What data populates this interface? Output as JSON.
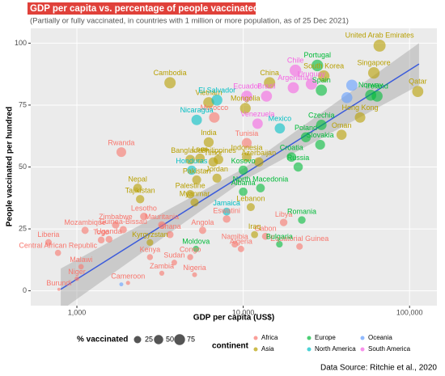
{
  "chart_data": {
    "type": "scatter",
    "title": "GDP per capita vs. percentage of people vaccinated",
    "subtitle": "(Partially or fully vaccinated, in countries with 1 million or more population, as of 25 Dec 2021)",
    "x_label": "GDP per capita (US$)",
    "y_label": "People vaccinated per hundred",
    "caption": "Data Source: Ritchie et al., 2020",
    "xlim": [
      528,
      146000
    ],
    "ylim": [
      -6,
      106
    ],
    "x_log": true,
    "grid": true,
    "xticks": [
      {
        "value": 1000,
        "label": "1,000"
      },
      {
        "value": 10000,
        "label": "10,000"
      },
      {
        "value": 100000,
        "label": "100,000"
      }
    ],
    "yticks": [
      0,
      25,
      50,
      75,
      100
    ],
    "size_legend": {
      "title": "% vaccinated",
      "values": [
        25,
        50,
        75
      ]
    },
    "legend_title": "continent",
    "legend_position": "bottom",
    "trend": {
      "color": "#3b5bdb",
      "x": [
        800,
        10000,
        114000
      ],
      "y": [
        0.6,
        46.9,
        91.6
      ],
      "lower": [
        -8,
        44.5,
        83
      ],
      "upper": [
        9,
        49.3,
        100
      ]
    },
    "series": [
      {
        "name": "Africa",
        "color": "#F8766D",
        "labels": [
          "Morocco",
          "Rwanda",
          "Tunisia",
          "Lesotho",
          "Eswatini",
          "Zimbabwe",
          "Mozambique",
          "Guinea-Bissau",
          "Mauritania",
          "Libya",
          "Angola",
          "Ghana",
          "Togo",
          "Uganda",
          "Gabon",
          "Equatorial Guinea",
          "Algeria",
          "Namibia",
          "Liberia",
          "Central African Republic",
          "Kenya",
          "Congo",
          "Malawi",
          "Sudan",
          "Zambia",
          "Niger",
          "Cameroon",
          "Nigeria",
          "Burundi"
        ],
        "x": [
          6700,
          1850,
          10500,
          2530,
          7950,
          1710,
          1120,
          1900,
          3240,
          17500,
          5700,
          3630,
          1400,
          1560,
          13600,
          21800,
          9700,
          8900,
          675,
          770,
          2750,
          4800,
          1060,
          3850,
          3240,
          1000,
          2030,
          5100,
          780
        ],
        "values": [
          70,
          56,
          59.7,
          30,
          29,
          26.6,
          24.4,
          24.7,
          26.6,
          27.6,
          24.4,
          22.7,
          20.5,
          20.8,
          22,
          17.9,
          16.9,
          18.8,
          19.5,
          15.3,
          13.6,
          13.6,
          9.7,
          11.4,
          7.1,
          4.9,
          3.2,
          6.5,
          0.6
        ]
      },
      {
        "name": "Asia",
        "color": "#B79F00",
        "labels": [
          "United Arab Emirates",
          "Singapore",
          "Qatar",
          "South Korea",
          "China",
          "Cambodia",
          "Vietnam",
          "Mongolia",
          "Hong Kong",
          "Oman",
          "India",
          "Bangladesh",
          "Laos",
          "Philippines",
          "Indonesia",
          "Timor",
          "Azerbaijan",
          "Pakistan",
          "Jordan",
          "Nepal",
          "Palestine",
          "Tajikistan",
          "Myanmar",
          "Lebanon",
          "Kyrgyzstan",
          "Iraq"
        ],
        "x": [
          66000,
          61000,
          112000,
          30500,
          14400,
          3630,
          6200,
          10300,
          50400,
          39000,
          6200,
          4800,
          5500,
          7100,
          10500,
          6600,
          12400,
          5250,
          6950,
          2320,
          4800,
          2400,
          5100,
          11100,
          2750,
          11700
        ],
        "values": [
          99,
          88,
          80.5,
          86.7,
          84,
          84,
          76,
          73.7,
          70,
          63,
          60,
          53,
          53.5,
          53,
          54,
          52,
          52,
          44.8,
          45.5,
          41.5,
          39,
          37,
          35.7,
          33.8,
          19.5,
          22.7
        ]
      },
      {
        "name": "Europe",
        "color": "#00BA38",
        "labels": [
          "Portugal",
          "Spain",
          "Norway",
          "Ireland",
          "Czechia",
          "Poland",
          "Slovakia",
          "Croatia",
          "Russia",
          "Kosovo",
          "Albania",
          "North Macedonia",
          "Romania",
          "Bulgaria",
          "Moldova"
        ],
        "x": [
          27900,
          29500,
          58400,
          63800,
          29500,
          23800,
          29000,
          19500,
          21400,
          10000,
          10000,
          12700,
          22500,
          16500,
          5200
        ],
        "values": [
          91,
          81,
          79,
          78.6,
          67,
          62,
          59,
          54,
          50,
          48.7,
          40,
          41.5,
          28.6,
          18.8,
          16.9
        ]
      },
      {
        "name": "North America",
        "color": "#00BFC4",
        "labels": [
          "El Salvador",
          "Nicaragua",
          "Mexico",
          "Honduras",
          "Jamaica"
        ],
        "x": [
          6950,
          5250,
          16600,
          4900,
          7950
        ],
        "values": [
          77,
          69,
          65.6,
          48.7,
          32
        ]
      },
      {
        "name": "Oceania",
        "color": "#619CFF",
        "labels": [
          null,
          null,
          null
        ],
        "x": [
          1850,
          45000,
          42000
        ],
        "values": [
          2.6,
          83,
          78
        ]
      },
      {
        "name": "South America",
        "color": "#F564E3",
        "labels": [
          "Chile",
          "Argentina",
          "Uruguay",
          "Brazil",
          "Ecuador",
          "Venezuela"
        ],
        "x": [
          20600,
          20000,
          25700,
          13800,
          10500,
          12200
        ],
        "values": [
          89,
          82,
          83.5,
          78.6,
          78.6,
          67.5
        ]
      }
    ]
  }
}
